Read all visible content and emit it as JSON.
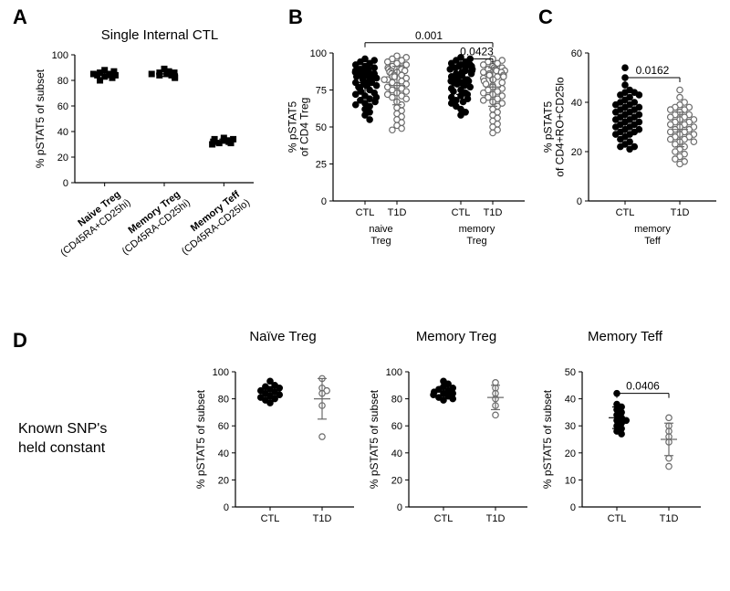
{
  "colors": {
    "bg": "#ffffff",
    "ink": "#000000",
    "filled_marker": "#000000",
    "open_marker_stroke": "#6b6b6b",
    "open_marker_fill": "#ffffff"
  },
  "labels": {
    "A": "A",
    "B": "B",
    "C": "C",
    "D": "D"
  },
  "panelA": {
    "title": "Single Internal CTL",
    "ylabel": "% pSTAT5 of subset",
    "ylim": [
      0,
      100
    ],
    "ytick_step": 20,
    "marker": "square",
    "marker_size": 5,
    "marker_color": "#000000",
    "groups": [
      {
        "name": "Naive Treg",
        "sub": "(CD45RA+CD25hi)",
        "values": [
          86,
          84,
          85,
          88,
          80,
          83,
          82,
          84,
          87,
          85
        ]
      },
      {
        "name": "Memory Treg",
        "sub": "(CD45RA-CD25hi)",
        "values": [
          87,
          85,
          86,
          84,
          89,
          83,
          82,
          85,
          86,
          84
        ]
      },
      {
        "name": "Memory Teff",
        "sub": "(CD45RA-CD25lo)",
        "values": [
          34,
          32,
          33,
          31,
          35,
          30,
          33,
          32,
          34,
          31
        ]
      }
    ],
    "mean_sd": [
      {
        "mean": 84.4,
        "sd": 2.3
      },
      {
        "mean": 85.1,
        "sd": 2.0
      },
      {
        "mean": 32.5,
        "sd": 1.6
      }
    ]
  },
  "panelB": {
    "ylabel_line1": "% pSTAT5",
    "ylabel_line2": "of CD4 Treg",
    "ylim": [
      0,
      100
    ],
    "yticks": [
      0,
      25,
      50,
      75,
      100
    ],
    "pvals": [
      {
        "label": "0.001",
        "between": [
          "naiveCTL",
          "memoryT1D"
        ],
        "y": 102
      },
      {
        "label": "0.0423",
        "between": [
          "memoryCTL",
          "memoryT1D"
        ],
        "y": 96
      }
    ],
    "xgroups": [
      "naive Treg",
      "memory Treg"
    ],
    "series": [
      {
        "key": "naiveCTL",
        "label": "CTL",
        "fill": "#000000",
        "stroke": "#000000",
        "values": [
          96,
          95,
          94,
          93,
          92,
          91,
          90,
          90,
          89,
          89,
          88,
          88,
          87,
          87,
          86,
          86,
          85,
          85,
          84,
          84,
          83,
          83,
          82,
          82,
          81,
          81,
          80,
          80,
          79,
          79,
          78,
          78,
          77,
          76,
          75,
          74,
          73,
          72,
          71,
          70,
          69,
          68,
          67,
          66,
          65,
          64,
          62,
          60,
          58,
          55
        ]
      },
      {
        "key": "naiveT1D",
        "label": "T1D",
        "fill": "#ffffff",
        "stroke": "#6b6b6b",
        "values": [
          98,
          97,
          96,
          95,
          94,
          93,
          92,
          91,
          90,
          90,
          89,
          89,
          88,
          88,
          87,
          87,
          86,
          85,
          85,
          84,
          84,
          83,
          82,
          82,
          81,
          80,
          79,
          78,
          77,
          76,
          75,
          74,
          73,
          72,
          71,
          70,
          69,
          67,
          65,
          63,
          61,
          59,
          57,
          55,
          53,
          51,
          49,
          48
        ]
      },
      {
        "key": "memoryCTL",
        "label": "CTL",
        "fill": "#000000",
        "stroke": "#000000",
        "values": [
          97,
          96,
          95,
          94,
          93,
          92,
          92,
          91,
          91,
          90,
          90,
          89,
          89,
          88,
          88,
          87,
          87,
          86,
          86,
          85,
          85,
          84,
          84,
          83,
          83,
          82,
          82,
          81,
          81,
          80,
          80,
          79,
          79,
          78,
          77,
          76,
          75,
          74,
          73,
          72,
          71,
          70,
          69,
          68,
          67,
          66,
          64,
          62,
          60,
          58
        ]
      },
      {
        "key": "memoryT1D",
        "label": "T1D",
        "fill": "#ffffff",
        "stroke": "#6b6b6b",
        "values": [
          96,
          95,
          94,
          93,
          92,
          91,
          90,
          90,
          89,
          89,
          88,
          88,
          87,
          87,
          86,
          85,
          85,
          84,
          84,
          83,
          82,
          82,
          81,
          80,
          79,
          78,
          77,
          76,
          75,
          74,
          73,
          72,
          71,
          70,
          69,
          68,
          67,
          66,
          64,
          62,
          60,
          58,
          56,
          54,
          52,
          50,
          48,
          46
        ]
      }
    ],
    "mean_sd": [
      {
        "key": "naiveCTL",
        "mean": 80,
        "sd": 10
      },
      {
        "key": "naiveT1D",
        "mean": 78,
        "sd": 13
      },
      {
        "key": "memoryCTL",
        "mean": 82,
        "sd": 10
      },
      {
        "key": "memoryT1D",
        "mean": 77,
        "sd": 13
      }
    ]
  },
  "panelC": {
    "ylabel_line1": "% pSTAT5",
    "ylabel_line2": "of CD4+RO+CD25lo",
    "ylim": [
      0,
      60
    ],
    "ytick_step": 20,
    "pval": {
      "label": "0.0162",
      "y": 50
    },
    "xgroup_label": "memory Teff",
    "series": [
      {
        "key": "CTL",
        "label": "CTL",
        "fill": "#000000",
        "stroke": "#000000",
        "values": [
          54,
          50,
          47,
          45,
          44,
          44,
          43,
          43,
          42,
          41,
          40,
          40,
          39,
          39,
          38,
          38,
          37,
          37,
          36,
          36,
          35,
          35,
          34,
          34,
          33,
          33,
          32,
          32,
          31,
          31,
          30,
          30,
          29,
          29,
          28,
          28,
          27,
          27,
          26,
          25,
          24,
          23,
          22,
          22,
          21
        ]
      },
      {
        "key": "T1D",
        "label": "T1D",
        "fill": "#ffffff",
        "stroke": "#6b6b6b",
        "values": [
          45,
          42,
          40,
          39,
          38,
          38,
          37,
          37,
          36,
          35,
          35,
          34,
          34,
          33,
          33,
          32,
          32,
          31,
          31,
          30,
          30,
          29,
          29,
          28,
          28,
          27,
          27,
          26,
          26,
          25,
          25,
          24,
          24,
          23,
          22,
          21,
          20,
          19,
          18,
          17,
          16,
          15
        ]
      }
    ],
    "mean_sd": [
      {
        "key": "CTL",
        "mean": 33,
        "sd": 7
      },
      {
        "key": "T1D",
        "mean": 29,
        "sd": 7
      }
    ]
  },
  "panelD": {
    "side_text_line1": "Known SNP's",
    "side_text_line2": "held constant",
    "titles": [
      "Naïve Treg",
      "Memory Treg",
      "Memory Teff"
    ],
    "ylabel": "% pSTAT5 of subset",
    "ylim": [
      0,
      100
    ],
    "ytick_step": 20,
    "axis_ylim_teff": [
      0,
      50
    ],
    "axis_ytick_teff": 10,
    "charts": [
      {
        "title": "Naïve Treg",
        "ylim": [
          0,
          100
        ],
        "ytick_step": 20,
        "series": [
          {
            "key": "CTL",
            "label": "CTL",
            "fill": "#000000",
            "stroke": "#000000",
            "values": [
              93,
              90,
              89,
              88,
              87,
              86,
              85,
              84,
              83,
              82,
              81,
              80,
              79,
              77
            ]
          },
          {
            "key": "T1D",
            "label": "T1D",
            "fill": "#ffffff",
            "stroke": "#6b6b6b",
            "values": [
              95,
              88,
              86,
              84,
              75,
              52
            ]
          }
        ],
        "mean_sd": [
          {
            "key": "CTL",
            "mean": 84,
            "sd": 5
          },
          {
            "key": "T1D",
            "mean": 80,
            "sd": 15
          }
        ]
      },
      {
        "title": "Memory Treg",
        "ylim": [
          0,
          100
        ],
        "ytick_step": 20,
        "series": [
          {
            "key": "CTL",
            "label": "CTL",
            "fill": "#000000",
            "stroke": "#000000",
            "values": [
              93,
              91,
              89,
              88,
              87,
              86,
              85,
              84,
              84,
              83,
              82,
              81,
              80,
              79
            ]
          },
          {
            "key": "T1D",
            "label": "T1D",
            "fill": "#ffffff",
            "stroke": "#6b6b6b",
            "values": [
              92,
              88,
              84,
              80,
              75,
              68
            ]
          }
        ],
        "mean_sd": [
          {
            "key": "CTL",
            "mean": 85,
            "sd": 4
          },
          {
            "key": "T1D",
            "mean": 81,
            "sd": 9
          }
        ]
      },
      {
        "title": "Memory Teff",
        "ylim": [
          0,
          50
        ],
        "ytick_step": 10,
        "pval": {
          "label": "0.0406",
          "y": 42
        },
        "series": [
          {
            "key": "CTL",
            "label": "CTL",
            "fill": "#000000",
            "stroke": "#000000",
            "values": [
              42,
              38,
              37,
              36,
              35,
              34,
              33,
              32,
              32,
              31,
              30,
              29,
              28,
              27
            ]
          },
          {
            "key": "T1D",
            "label": "T1D",
            "fill": "#ffffff",
            "stroke": "#6b6b6b",
            "values": [
              33,
              30,
              28,
              26,
              24,
              18,
              15
            ]
          }
        ],
        "mean_sd": [
          {
            "key": "CTL",
            "mean": 33,
            "sd": 4
          },
          {
            "key": "T1D",
            "mean": 25,
            "sd": 6
          }
        ]
      }
    ]
  }
}
